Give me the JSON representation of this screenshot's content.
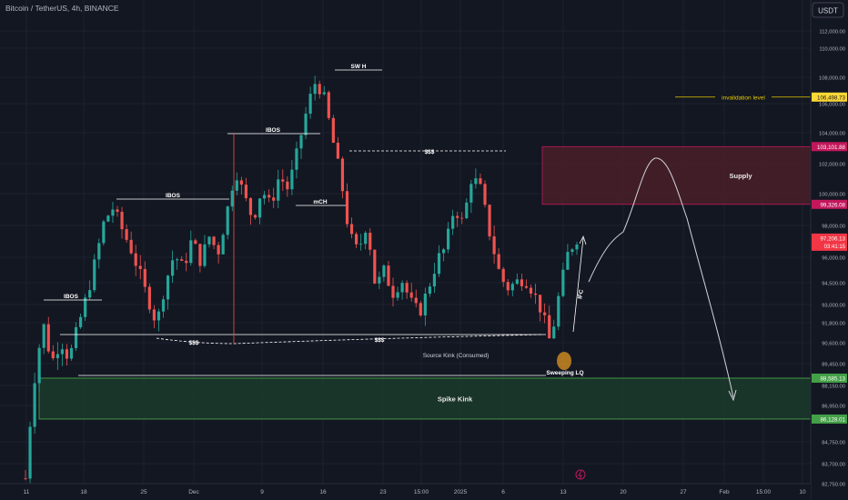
{
  "header": {
    "symbol": "Bitcoin / TetherUS, 4h, BINANCE",
    "currency": "USDT"
  },
  "colors": {
    "background": "#131722",
    "grid": "#1e222d",
    "up": "#26a69a",
    "down": "#ef5350",
    "supply_fill": "#4a1e28",
    "supply_border": "#c2185b",
    "demand_fill": "#1b3a2a",
    "demand_border": "#4caf50",
    "invalidation": "#e5c700",
    "current_price": "#f23645",
    "axis_text": "#b2b5be",
    "annotation": "#ffffff"
  },
  "chart_data": {
    "type": "candlestick",
    "x_ticks": [
      "11",
      "18",
      "25",
      "Dec",
      "9",
      "16",
      "23",
      "15:00",
      "2025",
      "6",
      "13",
      "20",
      "27",
      "Feb",
      "15:00",
      "10"
    ],
    "y_ticks": [
      "82,750.00",
      "83,700.00",
      "84,750.00",
      "86,950.00",
      "88,150.00",
      "89,450.00",
      "90,600.00",
      "91,800.00",
      "93,000.00",
      "94,500.00",
      "96,000.00",
      "98,000.00",
      "100,000.00",
      "102,000.00",
      "104,000.00",
      "106,000.00",
      "108,000.00",
      "110,000.00",
      "112,000.00"
    ],
    "ylim": [
      82500,
      112800
    ],
    "close_path": [
      [
        0,
        83000
      ],
      [
        2,
        88500
      ],
      [
        4,
        91800
      ],
      [
        6,
        89500
      ],
      [
        8,
        90800
      ],
      [
        10,
        89700
      ],
      [
        12,
        91500
      ],
      [
        14,
        93600
      ],
      [
        16,
        95800
      ],
      [
        18,
        98300
      ],
      [
        20,
        99100
      ],
      [
        22,
        97800
      ],
      [
        24,
        96600
      ],
      [
        26,
        95100
      ],
      [
        28,
        93400
      ],
      [
        30,
        91700
      ],
      [
        32,
        94500
      ],
      [
        34,
        96200
      ],
      [
        36,
        95300
      ],
      [
        38,
        97100
      ],
      [
        40,
        95800
      ],
      [
        42,
        97300
      ],
      [
        44,
        96300
      ],
      [
        46,
        98800
      ],
      [
        48,
        101600
      ],
      [
        50,
        99800
      ],
      [
        52,
        98400
      ],
      [
        54,
        100300
      ],
      [
        56,
        99200
      ],
      [
        58,
        101200
      ],
      [
        60,
        100300
      ],
      [
        62,
        102600
      ],
      [
        64,
        105200
      ],
      [
        66,
        107600
      ],
      [
        68,
        106800
      ],
      [
        70,
        103800
      ],
      [
        72,
        101100
      ],
      [
        74,
        97400
      ],
      [
        76,
        96300
      ],
      [
        78,
        98200
      ],
      [
        80,
        94200
      ],
      [
        82,
        95200
      ],
      [
        84,
        93800
      ],
      [
        86,
        94700
      ],
      [
        88,
        93200
      ],
      [
        90,
        92400
      ],
      [
        92,
        94100
      ],
      [
        94,
        95800
      ],
      [
        96,
        96600
      ],
      [
        98,
        99200
      ],
      [
        100,
        98100
      ],
      [
        102,
        101200
      ],
      [
        104,
        100300
      ],
      [
        106,
        97600
      ],
      [
        108,
        95300
      ],
      [
        110,
        94100
      ],
      [
        112,
        94500
      ],
      [
        114,
        94800
      ],
      [
        116,
        93900
      ],
      [
        118,
        92500
      ],
      [
        120,
        90500
      ],
      [
        122,
        93800
      ],
      [
        124,
        96300
      ],
      [
        126,
        97200
      ]
    ],
    "price_labels": [
      {
        "text": "106,498.73",
        "style": "invalidation"
      },
      {
        "text": "103,101.88",
        "style": "supply"
      },
      {
        "text": "99,326.08",
        "style": "supply"
      },
      {
        "text": "97,206.13",
        "sub": "03:41:15",
        "style": "current"
      },
      {
        "text": "88,585.13",
        "style": "demand"
      },
      {
        "text": "86,128.01",
        "style": "demand"
      }
    ],
    "zones": [
      {
        "name": "Supply",
        "top": 103101.88,
        "bottom": 99326.08,
        "kind": "supply"
      },
      {
        "name": "Spike Kink",
        "top": 88585.13,
        "bottom": 86128.01,
        "kind": "demand"
      }
    ],
    "annotations": {
      "ibos": "IBOS",
      "sw_h": "SW H",
      "mch": "mCH",
      "liquidity": "$$$",
      "source_kink": "Source Kink (Consumed)",
      "sweeping": "Sweeping LQ",
      "ifc": "IFC",
      "invalidation": "invalidation level"
    }
  }
}
